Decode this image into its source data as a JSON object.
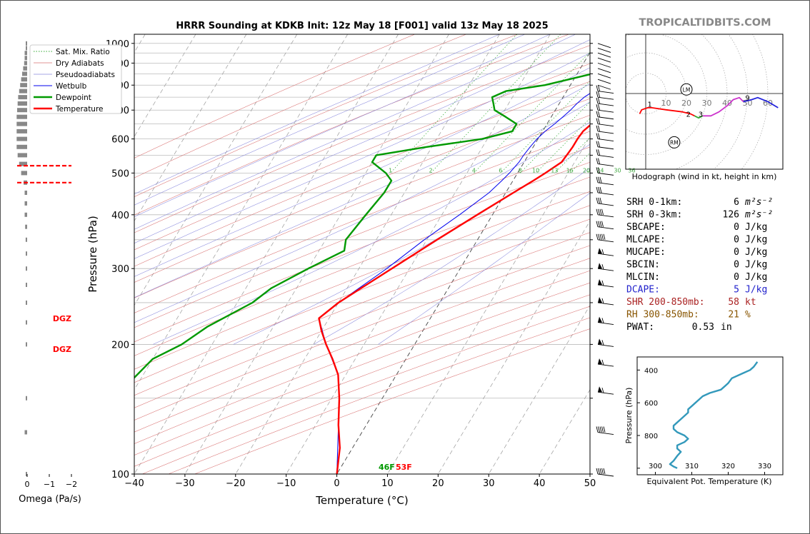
{
  "header": {
    "title": "HRRR Sounding at KDKB Init: 12z May 18 [F001] valid 13z May 18 2025",
    "brand": "TROPICALTIDBITS.COM"
  },
  "colors": {
    "temperature": "#ff0000",
    "dewpoint": "#009900",
    "wetbulb": "#0000ee",
    "brand": "#888888",
    "dcape": "#2222cc",
    "shear": "#aa2222",
    "rh": "#885500",
    "theta_e": "#3399bb"
  },
  "skewt": {
    "xlabel": "Temperature (°C)",
    "ylabel": "Pressure (hPa)",
    "x_ticks": [
      "−40",
      "−30",
      "−20",
      "−10",
      "0",
      "10",
      "20",
      "30",
      "40",
      "50"
    ],
    "y_ticks": [
      "100",
      "200",
      "300",
      "400",
      "500",
      "600",
      "700",
      "800",
      "900",
      "1000"
    ],
    "mixing_ratio_labels": [
      "1",
      "2",
      "4",
      "6",
      "8",
      "10",
      "13",
      "16",
      "20",
      "24",
      "30",
      "36"
    ],
    "surface_dewpoint_label": "46F",
    "surface_temperature_label": "53F",
    "legend": [
      "Sat. Mix. Ratio",
      "Dry Adiabats",
      "Pseudoadiabats",
      "Wetbulb",
      "Dewpoint",
      "Temperature"
    ]
  },
  "omega": {
    "xlabel": "Omega (Pa/s)",
    "ticks": [
      "0",
      "−1",
      "−2"
    ],
    "dgz_label": "DGZ"
  },
  "hodograph": {
    "caption": "Hodograph (wind in kt, height in km)",
    "ring_labels": [
      "10",
      "20",
      "30",
      "40",
      "50",
      "60"
    ],
    "height_labels": [
      "1",
      "2",
      "3",
      "9"
    ],
    "lm_label": "LM",
    "rm_label": "RM"
  },
  "indices": [
    {
      "label": "SRH 0-1km:",
      "value": "6",
      "unit": "m²s⁻²",
      "color": "#000000"
    },
    {
      "label": "SRH 0-3km:",
      "value": "126",
      "unit": "m²s⁻²",
      "color": "#000000"
    },
    {
      "label": "SBCAPE:",
      "value": "0",
      "unit": "J/kg",
      "color": "#000000"
    },
    {
      "label": "MLCAPE:",
      "value": "0",
      "unit": "J/kg",
      "color": "#000000"
    },
    {
      "label": "MUCAPE:",
      "value": "0",
      "unit": "J/kg",
      "color": "#000000"
    },
    {
      "label": "SBCIN:",
      "value": "0",
      "unit": "J/kg",
      "color": "#000000"
    },
    {
      "label": "MLCIN:",
      "value": "0",
      "unit": "J/kg",
      "color": "#000000"
    },
    {
      "label": "DCAPE:",
      "value": "5",
      "unit": "J/kg",
      "color": "#2222cc"
    },
    {
      "label": "SHR 200-850mb:",
      "value": "58",
      "unit": "kt",
      "color": "#aa2222"
    },
    {
      "label": "RH 300-850mb:",
      "value": "21",
      "unit": "%",
      "color": "#885500"
    },
    {
      "label": "PWAT:",
      "value": "0.53",
      "unit": "in",
      "color": "#000000"
    }
  ],
  "theta_e_panel": {
    "xlabel": "Equivalent Pot. Temperature (K)",
    "ylabel": "Pressure (hPa)",
    "x_ticks": [
      "300",
      "310",
      "320",
      "330"
    ],
    "y_ticks": [
      "400",
      "600",
      "800"
    ]
  },
  "chart_data": [
    {
      "type": "line",
      "title": "HRRR Sounding at KDKB Init: 12z May 18 [F001] valid 13z May 18 2025",
      "xlabel": "Temperature (°C)",
      "ylabel": "Pressure (hPa)",
      "x_scale": "skewed",
      "y_scale": "log",
      "xlim": [
        -40,
        50
      ],
      "ylim": [
        1050,
        100
      ],
      "grid": true,
      "legend_position": "top-left",
      "series": [
        {
          "name": "Temperature",
          "points": [
            [
              1000,
              12
            ],
            [
              985,
              10.5
            ],
            [
              960,
              10
            ],
            [
              925,
              9.5
            ],
            [
              900,
              9.6
            ],
            [
              870,
              10.2
            ],
            [
              850,
              11
            ],
            [
              830,
              13
            ],
            [
              800,
              14.5
            ],
            [
              775,
              15
            ],
            [
              750,
              14
            ],
            [
              725,
              12.5
            ],
            [
              700,
              11
            ],
            [
              675,
              9.8
            ],
            [
              650,
              8.8
            ],
            [
              625,
              8
            ],
            [
              600,
              7.8
            ],
            [
              575,
              7.8
            ],
            [
              550,
              7.6
            ],
            [
              530,
              7.4
            ],
            [
              500,
              5.5
            ],
            [
              480,
              4
            ],
            [
              450,
              1.5
            ],
            [
              400,
              -3
            ],
            [
              350,
              -8
            ],
            [
              300,
              -13.5
            ],
            [
              250,
              -20
            ],
            [
              230,
              -22
            ],
            [
              215,
              -20
            ],
            [
              200,
              -17.5
            ],
            [
              185,
              -14.5
            ],
            [
              170,
              -11.5
            ],
            [
              150,
              -8.5
            ],
            [
              130,
              -5.5
            ],
            [
              115,
              -2.5
            ],
            [
              100,
              0
            ]
          ]
        },
        {
          "name": "Dewpoint",
          "points": [
            [
              1000,
              8
            ],
            [
              985,
              8
            ],
            [
              960,
              9
            ],
            [
              925,
              10
            ],
            [
              900,
              9
            ],
            [
              870,
              7
            ],
            [
              850,
              3
            ],
            [
              800,
              -5
            ],
            [
              775,
              -12
            ],
            [
              750,
              -14
            ],
            [
              725,
              -13
            ],
            [
              700,
              -12
            ],
            [
              675,
              -9
            ],
            [
              650,
              -6
            ],
            [
              625,
              -6
            ],
            [
              600,
              -11
            ],
            [
              575,
              -21
            ],
            [
              550,
              -30
            ],
            [
              530,
              -30
            ],
            [
              500,
              -26
            ],
            [
              480,
              -24
            ],
            [
              450,
              -24
            ],
            [
              400,
              -25
            ],
            [
              350,
              -26
            ],
            [
              330,
              -25
            ],
            [
              300,
              -30
            ],
            [
              270,
              -35
            ],
            [
              250,
              -37
            ],
            [
              220,
              -43
            ],
            [
              200,
              -46
            ],
            [
              185,
              -50
            ],
            [
              150,
              -53
            ],
            [
              130,
              -55
            ],
            [
              115,
              -54
            ],
            [
              100,
              -52
            ]
          ]
        },
        {
          "name": "Wetbulb",
          "points": [
            [
              1000,
              10
            ],
            [
              970,
              9.5
            ],
            [
              925,
              9.5
            ],
            [
              900,
              9.6
            ],
            [
              870,
              9.5
            ],
            [
              850,
              8.8
            ],
            [
              825,
              8
            ],
            [
              800,
              6.8
            ],
            [
              775,
              5.3
            ],
            [
              750,
              4.2
            ],
            [
              725,
              3.5
            ],
            [
              700,
              3
            ],
            [
              675,
              2.3
            ],
            [
              650,
              1.5
            ],
            [
              625,
              0.5
            ],
            [
              600,
              -0.2
            ],
            [
              575,
              -0.6
            ],
            [
              550,
              -0.9
            ],
            [
              530,
              -1
            ],
            [
              500,
              -1.6
            ],
            [
              480,
              -2.2
            ],
            [
              450,
              -3.3
            ],
            [
              400,
              -6.5
            ],
            [
              350,
              -10.5
            ],
            [
              300,
              -14.5
            ],
            [
              250,
              -20
            ],
            [
              230,
              -22
            ],
            [
              200,
              -17.5
            ],
            [
              170,
              -11.5
            ],
            [
              150,
              -8.5
            ],
            [
              130,
              -5.5
            ],
            [
              100,
              0
            ]
          ]
        }
      ]
    },
    {
      "type": "bar",
      "title": "",
      "xlabel": "Omega (Pa/s)",
      "ylabel": "",
      "xlim": [
        0.3,
        -2.0
      ],
      "note_series": "Omega profile (Pa/s) by pressure (hPa)",
      "series": [
        {
          "name": "",
          "points": [
            [
              1000,
              0.02
            ],
            [
              975,
              0.02
            ],
            [
              950,
              0.05
            ],
            [
              925,
              0.05
            ],
            [
              900,
              0.06
            ],
            [
              875,
              0.08
            ],
            [
              850,
              0.1
            ],
            [
              825,
              0.12
            ],
            [
              800,
              0.14
            ],
            [
              775,
              0.16
            ],
            [
              750,
              0.18
            ],
            [
              725,
              0.19
            ],
            [
              700,
              0.2
            ],
            [
              675,
              0.21
            ],
            [
              650,
              0.21
            ],
            [
              625,
              0.21
            ],
            [
              600,
              0.21
            ],
            [
              575,
              0.21
            ],
            [
              550,
              0.19
            ],
            [
              525,
              0.16
            ],
            [
              500,
              0.12
            ],
            [
              475,
              0.07
            ],
            [
              450,
              0.05
            ],
            [
              425,
              0.05
            ],
            [
              400,
              0.05
            ],
            [
              375,
              0.04
            ],
            [
              350,
              0.03
            ],
            [
              325,
              0.02
            ],
            [
              300,
              0.02
            ],
            [
              275,
              0.02
            ],
            [
              250,
              0.01
            ],
            [
              225,
              0.01
            ],
            [
              200,
              0.01
            ],
            [
              150,
              0.02
            ],
            [
              125,
              0.05
            ],
            [
              100,
              0.01
            ]
          ]
        }
      ],
      "dgz_hpa": [
        475,
        520
      ]
    },
    {
      "type": "scatter",
      "title": "",
      "xlabel": "",
      "ylabel": "",
      "note_series": "Hodograph u/v wind components (kt) with height in km",
      "xlim": [
        -10,
        65
      ],
      "ylim": [
        -37,
        28
      ],
      "series": [
        {
          "name": "0-1km",
          "color": "#ff0000",
          "points": [
            [
              -3,
              -10
            ],
            [
              -2,
              -8
            ],
            [
              1,
              -7
            ],
            [
              3,
              -7
            ],
            [
              10,
              -8
            ],
            [
              18,
              -9
            ],
            [
              22,
              -10
            ],
            [
              24,
              -11
            ]
          ]
        },
        {
          "name": "1-3km",
          "color": "#33aa33",
          "points": [
            [
              24,
              -11
            ],
            [
              26,
              -12
            ],
            [
              28,
              -11
            ]
          ]
        },
        {
          "name": "3-9km",
          "color": "#cc33cc",
          "points": [
            [
              28,
              -11
            ],
            [
              32,
              -11
            ],
            [
              36,
              -9
            ],
            [
              40,
              -6
            ],
            [
              43,
              -3
            ],
            [
              46,
              -2
            ],
            [
              48,
              -4
            ]
          ]
        },
        {
          "name": "9+km",
          "color": "#2222dd",
          "points": [
            [
              48,
              -4
            ],
            [
              52,
              -3
            ],
            [
              55,
              -2
            ],
            [
              60,
              -4
            ],
            [
              65,
              -7
            ]
          ]
        }
      ],
      "storm_motion": {
        "LM": [
          20,
          2
        ],
        "RM": [
          14,
          -24
        ]
      }
    },
    {
      "type": "line",
      "title": "",
      "xlabel": "Equivalent Pot. Temperature (K)",
      "ylabel": "Pressure (hPa)",
      "xlim": [
        295,
        335
      ],
      "ylim": [
        1040,
        320
      ],
      "series": [
        {
          "name": "",
          "points": [
            [
              1000,
              306
            ],
            [
              990,
              305
            ],
            [
              975,
              304
            ],
            [
              955,
              305
            ],
            [
              925,
              306
            ],
            [
              900,
              307
            ],
            [
              880,
              306
            ],
            [
              860,
              306
            ],
            [
              840,
              308
            ],
            [
              820,
              309
            ],
            [
              800,
              308
            ],
            [
              780,
              306
            ],
            [
              760,
              305
            ],
            [
              740,
              305
            ],
            [
              720,
              306
            ],
            [
              700,
              307
            ],
            [
              680,
              308
            ],
            [
              660,
              309
            ],
            [
              640,
              309
            ],
            [
              620,
              310
            ],
            [
              600,
              311
            ],
            [
              580,
              312
            ],
            [
              560,
              313
            ],
            [
              540,
              315
            ],
            [
              520,
              318
            ],
            [
              500,
              319
            ],
            [
              480,
              320
            ],
            [
              450,
              321
            ],
            [
              420,
              324
            ],
            [
              400,
              326
            ],
            [
              380,
              327
            ],
            [
              350,
              328
            ]
          ]
        }
      ]
    }
  ]
}
